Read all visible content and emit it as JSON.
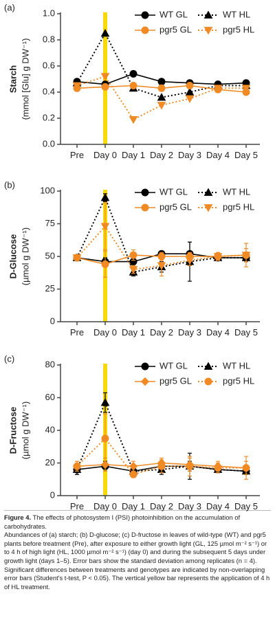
{
  "chart_data": [
    {
      "type": "line",
      "panel": "(a)",
      "ylabel": "Starch",
      "ylabel_unit": "(mmol [Glu] g DW⁻¹)",
      "categories": [
        "Pre",
        "Day 0",
        "Day 1",
        "Day 2",
        "Day 3",
        "Day 4",
        "Day 5"
      ],
      "ylim": [
        0,
        1.0
      ],
      "yticks": [
        {
          "value": 0,
          "label": "0.0"
        },
        0.2,
        0.4,
        0.6,
        0.8,
        {
          "value": 1,
          "label": "1.0"
        }
      ],
      "legend": "upper right",
      "highlight_category": 1,
      "highlight_color": "#f5d90a",
      "series": [
        {
          "name": "WT GL",
          "color": "#000000",
          "marker": "circle",
          "dashed": false,
          "values": [
            0.48,
            0.46,
            0.54,
            0.48,
            0.47,
            0.46,
            0.47
          ]
        },
        {
          "name": "WT HL",
          "color": "#000000",
          "marker": "triangle",
          "dashed": true,
          "values": [
            0.47,
            0.85,
            0.43,
            0.36,
            0.4,
            0.45,
            0.45
          ]
        },
        {
          "name": "pgr5 GL",
          "color": "#f08a24",
          "marker": "circle",
          "dashed": false,
          "values": [
            0.43,
            0.44,
            0.45,
            0.43,
            0.45,
            0.42,
            0.4
          ]
        },
        {
          "name": "pgr5 HL",
          "color": "#f08a24",
          "marker": "triangle-down",
          "dashed": true,
          "values": [
            0.45,
            0.52,
            0.19,
            0.3,
            0.35,
            0.43,
            0.43
          ]
        }
      ]
    },
    {
      "type": "line",
      "panel": "(b)",
      "ylabel": "D-Glucose",
      "ylabel_unit": "(µmol g DW⁻¹)",
      "categories": [
        "Pre",
        "Day 0",
        "Day 1",
        "Day 2",
        "Day 3",
        "Day 4",
        "Day 5"
      ],
      "ylim": [
        0,
        100
      ],
      "yticks": [
        0,
        25,
        50,
        75,
        100
      ],
      "legend": "upper right",
      "highlight_category": 1,
      "highlight_color": "#f5d90a",
      "series": [
        {
          "name": "WT GL",
          "color": "#000000",
          "marker": "circle",
          "dashed": false,
          "values": [
            49,
            46,
            46,
            52,
            52,
            49,
            49
          ],
          "errors": [
            2,
            3,
            6,
            2,
            9,
            2,
            3
          ]
        },
        {
          "name": "WT HL",
          "color": "#000000",
          "marker": "triangle",
          "dashed": true,
          "values": [
            49,
            95,
            38,
            42,
            46,
            49,
            49
          ],
          "errors": [
            2,
            3,
            3,
            4,
            15,
            2,
            3
          ]
        },
        {
          "name": "pgr5 GL",
          "color": "#f08a24",
          "marker": "circle",
          "dashed": false,
          "values": [
            49,
            44,
            51,
            50,
            50,
            50,
            51
          ],
          "errors": [
            2,
            10,
            4,
            3,
            3,
            3,
            9
          ]
        },
        {
          "name": "pgr5 HL",
          "color": "#f08a24",
          "marker": "triangle-down",
          "dashed": true,
          "values": [
            49,
            73,
            40,
            43,
            47,
            50,
            51
          ],
          "errors": [
            2,
            18,
            3,
            8,
            4,
            3,
            5
          ]
        }
      ]
    },
    {
      "type": "line",
      "panel": "(c)",
      "ylabel": "D-Fructose",
      "ylabel_unit": "(µmol g DW⁻¹)",
      "categories": [
        "Pre",
        "Day 0",
        "Day 1",
        "Day 2",
        "Day 3",
        "Day 4",
        "Day 5"
      ],
      "ylim": [
        0,
        80
      ],
      "yticks": [
        0,
        20,
        40,
        60,
        80
      ],
      "legend": "upper right",
      "highlight_category": 1,
      "highlight_color": "#f5d90a",
      "series": [
        {
          "name": "WT GL",
          "color": "#000000",
          "marker": "circle",
          "dashed": false,
          "values": [
            16,
            18,
            15,
            18,
            18,
            16,
            15
          ],
          "errors": [
            3,
            3,
            2,
            2,
            3,
            2,
            2
          ]
        },
        {
          "name": "WT HL",
          "color": "#000000",
          "marker": "triangle",
          "dashed": true,
          "values": [
            16,
            57,
            15,
            16,
            18,
            16,
            15
          ],
          "errors": [
            3,
            6,
            2,
            3,
            8,
            2,
            2
          ]
        },
        {
          "name": "pgr5 GL",
          "color": "#f08a24",
          "marker": "diamond",
          "dashed": false,
          "values": [
            18,
            19,
            18,
            20,
            19,
            18,
            17
          ],
          "errors": [
            3,
            4,
            3,
            3,
            4,
            3,
            4
          ]
        },
        {
          "name": "pgr5 HL",
          "color": "#f08a24",
          "marker": "circle",
          "dashed": true,
          "values": [
            18,
            35,
            13,
            18,
            18,
            17,
            17
          ],
          "errors": [
            3,
            15,
            2,
            4,
            6,
            3,
            7
          ]
        }
      ]
    }
  ],
  "caption": {
    "label": "Figure 4.",
    "title": "The effects of photosystem I (PSI) photoinhibition on the accumulation of carbohydrates.",
    "body": "Abundances of (a) starch; (b) D-glucose; (c) D-fructose in leaves of wild-type (WT) and pgr5 plants before treatment (Pre), after exposure to either growth light (GL, 125 µmol m⁻² s⁻¹) or to 4 h of high light (HL, 1000 µmol m⁻² s⁻¹) (day 0) and during the subsequent 5 days under growth light (days 1–5). Error bars show the standard deviation among replicates (n = 4). Significant differences between treatments and genotypes are indicated by non-overlapping error bars (Student's t-test, P < 0.05). The vertical yellow bar represents the application of 4 h of HL treatment."
  }
}
